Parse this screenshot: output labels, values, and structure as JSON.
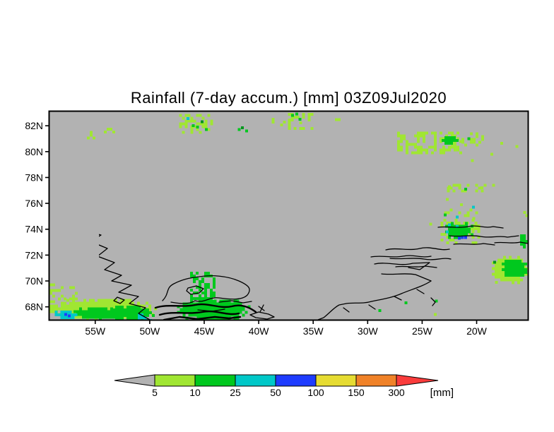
{
  "chart_data": {
    "type": "map",
    "title": "Rainfall (7-day accum.) [mm] 03Z09Jul2020",
    "projection": "latlon",
    "region": "Greenland",
    "lon_range_W": [
      59.2,
      15.3
    ],
    "lat_range_N": [
      67.0,
      83.1
    ],
    "background_color": "#b2b2b2",
    "coast_color": "#000000",
    "grid": "off",
    "x_axis": {
      "tick_labels": [
        "55W",
        "50W",
        "45W",
        "40W",
        "35W",
        "30W",
        "25W",
        "20W"
      ],
      "tick_lonW": [
        55,
        50,
        45,
        40,
        35,
        30,
        25,
        20
      ]
    },
    "y_axis": {
      "tick_labels": [
        "82N",
        "80N",
        "78N",
        "76N",
        "74N",
        "72N",
        "70N",
        "68N"
      ],
      "tick_latN": [
        82,
        80,
        78,
        76,
        74,
        72,
        70,
        68
      ]
    },
    "colorbar": {
      "unit": "[mm]",
      "levels": [
        "5",
        "10",
        "25",
        "50",
        "100",
        "150",
        "300"
      ],
      "segment_colors": [
        "#a0e632",
        "#00c81e",
        "#00c8c8",
        "#1e3cff",
        "#e6dc32",
        "#f08228"
      ],
      "under_color": "#b2b2b2",
      "over_color": "#fa3c3c"
    },
    "palette": {
      "light": "#a0e632",
      "green": "#00c81e",
      "dark": "#00961e",
      "cyan": "#00c8c8",
      "blue": "#1e3cff"
    },
    "rain_patches": [
      {
        "name": "sw-fringe",
        "style": "blob",
        "level": "light",
        "lonW": [
          59.2,
          49.6
        ],
        "latN": [
          67.0,
          68.6
        ],
        "seed": 11
      },
      {
        "name": "sw-fringe-upper",
        "style": "speckle",
        "density": 0.35,
        "level": "light",
        "lonW": [
          59.2,
          56.8
        ],
        "latN": [
          68.4,
          69.8
        ],
        "seed": 12
      },
      {
        "name": "se-patch-fringe",
        "style": "blob",
        "level": "light",
        "lonW": [
          18.6,
          15.3
        ],
        "latN": [
          69.8,
          71.95
        ],
        "seed": 13
      },
      {
        "name": "east-cluster-fringe",
        "style": "speckle",
        "density": 0.4,
        "level": "light",
        "lonW": [
          23.3,
          19.9
        ],
        "latN": [
          73.0,
          74.8
        ],
        "seed": 14
      },
      {
        "name": "ne-streaks",
        "style": "speckle",
        "density": 0.45,
        "level": "light",
        "lonW": [
          27.3,
          21.5
        ],
        "latN": [
          80.0,
          81.55
        ],
        "seed": 15
      },
      {
        "name": "ne-streaks-east",
        "style": "speckle",
        "density": 0.35,
        "level": "light",
        "lonW": [
          21.4,
          19.5
        ],
        "latN": [
          80.6,
          81.5
        ],
        "seed": 16
      },
      {
        "name": "north-center-cluster",
        "style": "speckle",
        "density": 0.4,
        "level": "light",
        "lonW": [
          47.3,
          44.2
        ],
        "latN": [
          81.4,
          82.9
        ],
        "seed": 17
      },
      {
        "name": "nw-dots-1",
        "style": "speckle",
        "density": 0.3,
        "level": "light",
        "lonW": [
          56.8,
          55.2
        ],
        "latN": [
          81.0,
          81.6
        ],
        "seed": 18
      },
      {
        "name": "nw-dots-2",
        "style": "speckle",
        "density": 0.25,
        "level": "light",
        "lonW": [
          54.2,
          52.5
        ],
        "latN": [
          81.2,
          81.85
        ],
        "seed": 19
      },
      {
        "name": "north-dots-38w",
        "style": "speckle",
        "density": 0.3,
        "level": "light",
        "lonW": [
          38.8,
          37.7
        ],
        "latN": [
          82.0,
          82.6
        ],
        "seed": 20
      },
      {
        "name": "ne-corner-cluster",
        "style": "speckle",
        "density": 0.35,
        "level": "light",
        "lonW": [
          37.3,
          35.1
        ],
        "latN": [
          81.7,
          83.0
        ],
        "seed": 21
      },
      {
        "name": "ne-dots-32w",
        "style": "speckle",
        "density": 0.3,
        "level": "light",
        "lonW": [
          33.0,
          31.9
        ],
        "latN": [
          82.4,
          82.8
        ],
        "seed": 22
      },
      {
        "name": "ne-fjord-streaks-77n",
        "style": "speckle",
        "density": 0.35,
        "level": "light",
        "lonW": [
          23.0,
          18.5
        ],
        "latN": [
          76.9,
          77.5
        ],
        "seed": 23
      },
      {
        "name": "ne-fjord-streaks-75n",
        "style": "speckle",
        "density": 0.3,
        "level": "light",
        "lonW": [
          23.0,
          20.0
        ],
        "latN": [
          74.8,
          75.6
        ],
        "seed": 24
      },
      {
        "name": "sw-core-west",
        "style": "blob",
        "level": "green",
        "lonW": [
          57.0,
          52.5
        ],
        "latN": [
          67.0,
          67.95
        ],
        "seed": 31
      },
      {
        "name": "sw-core-east",
        "style": "blob",
        "level": "green",
        "lonW": [
          54.2,
          49.6
        ],
        "latN": [
          67.0,
          68.1
        ],
        "seed": 32
      },
      {
        "name": "se-coast-mass",
        "style": "blob",
        "level": "green",
        "lonW": [
          47.5,
          40.8
        ],
        "latN": [
          66.9,
          68.55
        ],
        "seed": 33
      },
      {
        "name": "disko-coast-streak",
        "style": "speckle",
        "density": 0.55,
        "level": "green",
        "lonW": [
          46.3,
          44.2
        ],
        "latN": [
          68.3,
          70.7
        ],
        "seed": 34
      },
      {
        "name": "ne-streaks-green",
        "style": "blob",
        "level": "green",
        "lonW": [
          23.2,
          21.7
        ],
        "latN": [
          80.55,
          81.2
        ],
        "seed": 35
      },
      {
        "name": "east-cluster",
        "style": "blob",
        "level": "green",
        "lonW": [
          22.9,
          20.3
        ],
        "latN": [
          73.2,
          74.55
        ],
        "seed": 36
      },
      {
        "name": "right-edge-mid",
        "style": "blob",
        "level": "green",
        "lonW": [
          16.0,
          15.3
        ],
        "latN": [
          72.6,
          73.6
        ],
        "seed": 37
      },
      {
        "name": "se-patch-core",
        "style": "blob",
        "level": "green",
        "lonW": [
          17.7,
          15.35
        ],
        "latN": [
          70.25,
          71.65
        ],
        "seed": 38
      },
      {
        "name": "sw-cyan-arc",
        "style": "blob",
        "level": "cyan",
        "lonW": [
          58.7,
          56.7
        ],
        "latN": [
          67.1,
          67.7
        ],
        "seed": 41
      },
      {
        "name": "sw-blue-spots",
        "style": "spots",
        "cells": [
          [
            57.7,
            67.4,
            "blue"
          ],
          [
            57.4,
            67.3,
            "blue"
          ]
        ]
      },
      {
        "name": "sw-cyan-east",
        "style": "speckle",
        "density": 0.5,
        "level": "cyan",
        "lonW": [
          51.1,
          49.7
        ],
        "latN": [
          67.05,
          67.5
        ],
        "seed": 42
      },
      {
        "name": "north-center-green-spots",
        "style": "spots",
        "cells": [
          [
            46.0,
            82.0,
            "green"
          ],
          [
            45.6,
            81.9,
            "green"
          ],
          [
            45.2,
            82.3,
            "dark"
          ],
          [
            46.5,
            82.55,
            "cyan"
          ],
          [
            44.8,
            81.7,
            "green"
          ]
        ]
      },
      {
        "name": "north-dots-40w",
        "style": "spots",
        "cells": [
          [
            41.8,
            81.7,
            "green"
          ],
          [
            41.5,
            81.85,
            "dark"
          ],
          [
            41.1,
            81.6,
            "green"
          ]
        ]
      },
      {
        "name": "ne-corner-green-spots",
        "style": "spots",
        "cells": [
          [
            36.9,
            82.8,
            "green"
          ],
          [
            36.5,
            82.9,
            "green"
          ],
          [
            36.2,
            82.5,
            "green"
          ]
        ]
      },
      {
        "name": "ne-streak-outlier-dots",
        "style": "spots",
        "cells": [
          [
            20.7,
            81.0,
            "green"
          ],
          [
            17.7,
            80.65,
            "light"
          ],
          [
            16.3,
            80.4,
            "light"
          ],
          [
            20.4,
            79.3,
            "light"
          ],
          [
            18.6,
            79.8,
            "light"
          ]
        ]
      },
      {
        "name": "east-sparse-dots",
        "style": "spots",
        "cells": [
          [
            22.5,
            77.3,
            "light"
          ],
          [
            21.0,
            77.1,
            "green"
          ],
          [
            19.5,
            77.2,
            "light"
          ],
          [
            22.7,
            76.3,
            "light"
          ],
          [
            21.4,
            75.9,
            "light"
          ],
          [
            20.3,
            75.7,
            "cyan"
          ],
          [
            22.9,
            75.1,
            "green"
          ],
          [
            21.8,
            74.95,
            "cyan"
          ],
          [
            24.2,
            74.4,
            "light"
          ],
          [
            15.6,
            75.3,
            "light"
          ],
          [
            15.4,
            75.05,
            "light"
          ]
        ]
      },
      {
        "name": "east-cluster-heavy-spots",
        "style": "spots",
        "cells": [
          [
            22.5,
            74.35,
            "cyan"
          ],
          [
            21.8,
            74.2,
            "cyan"
          ],
          [
            22.7,
            73.8,
            "cyan"
          ],
          [
            21.3,
            73.35,
            "blue"
          ],
          [
            21.0,
            73.35,
            "blue"
          ],
          [
            21.6,
            73.3,
            "blue"
          ]
        ]
      },
      {
        "name": "se-patch-spots",
        "style": "spots",
        "cells": [
          [
            18.35,
            71.45,
            "dark"
          ],
          [
            18.2,
            69.9,
            "light"
          ]
        ]
      },
      {
        "name": "south-scattered-dots",
        "style": "spots",
        "cells": [
          [
            26.5,
            68.3,
            "green"
          ],
          [
            28.9,
            67.7,
            "green"
          ],
          [
            23.7,
            68.45,
            "green"
          ],
          [
            23.8,
            67.4,
            "light"
          ]
        ]
      }
    ]
  }
}
